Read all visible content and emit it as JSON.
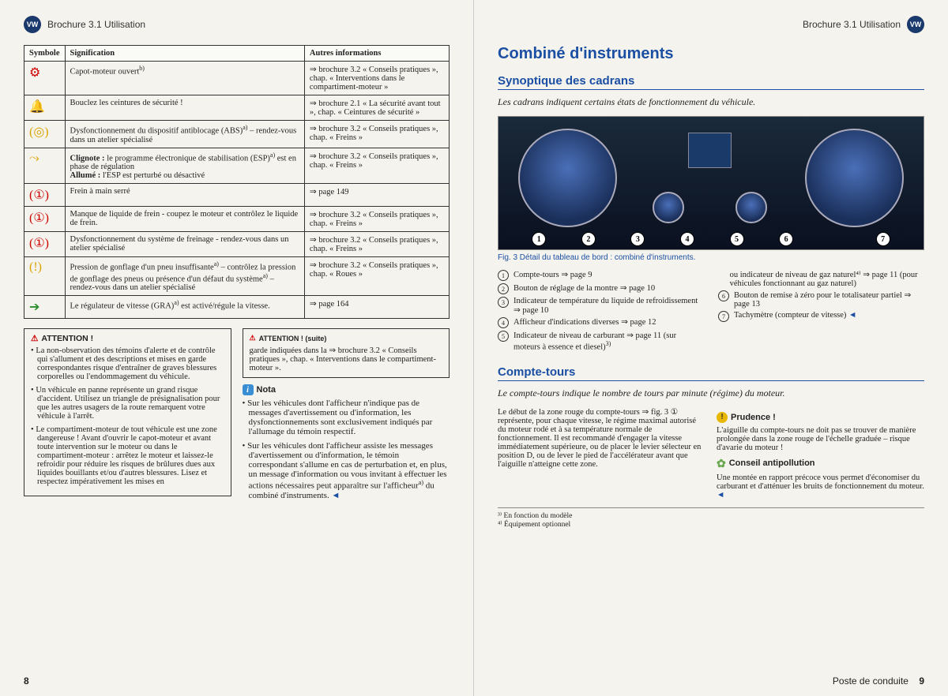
{
  "brochure_ref": "Brochure 3.1  Utilisation",
  "left_page_num": "8",
  "right_page_num": "9",
  "right_footer": "Poste de conduite",
  "table": {
    "headers": [
      "Symbole",
      "Signification",
      "Autres informations"
    ],
    "rows": [
      {
        "sym": "⚙",
        "cls": "sym-red",
        "sig": "Capot-moteur ouvert",
        "sigSup": "b)",
        "info": "⇒ brochure 3.2 « Conseils pratiques », chap. « Interventions dans le compartiment-moteur »"
      },
      {
        "sym": "🔔",
        "cls": "sym-red",
        "sig": "Bouclez les ceintures de sécurité !",
        "info": "⇒ brochure 2.1 « La sécurité avant tout », chap. « Ceintures de sécurité »"
      },
      {
        "sym": "(◎)",
        "cls": "sym-yellow",
        "sig": "Dysfonctionnement du dispositif antiblocage (ABS)",
        "sigSup": "a)",
        "sigTail": " – rendez-vous dans un atelier spécialisé",
        "info": "⇒ brochure 3.2 « Conseils pratiques », chap. « Freins »"
      },
      {
        "sym": "⤳",
        "cls": "sym-yellow",
        "sigHtml": "<b>Clignote :</b> le programme électronique de stabilisation (ESP)<sup>a)</sup> est en phase de régulation<br><b>Allumé :</b> l'ESP est perturbé ou désactivé",
        "info": "⇒ brochure 3.2 « Conseils pratiques », chap. « Freins »"
      },
      {
        "sym": "(①)",
        "cls": "sym-red",
        "sig": "Frein à main serré",
        "info": "⇒ page 149"
      },
      {
        "sym": "(①)",
        "cls": "sym-red",
        "sig": "Manque de liquide de frein - coupez le moteur et contrôlez le liquide de frein.",
        "info": "⇒ brochure 3.2 « Conseils pratiques », chap. « Freins »"
      },
      {
        "sym": "(①)",
        "cls": "sym-red",
        "sig": "Dysfonctionnement du système de freinage - rendez-vous dans un atelier spécialisé",
        "info": "⇒ brochure 3.2 « Conseils pratiques », chap. « Freins »"
      },
      {
        "sym": "(!)",
        "cls": "sym-yellow",
        "sigHtml": "Pression de gonflage d'un pneu insuffisante<sup>a)</sup> – contrôlez la pression de gonflage des pneus ou présence d'un défaut du système<sup>a)</sup> – rendez-vous dans un atelier spécialisé",
        "info": "⇒ brochure 3.2 « Conseils pratiques », chap. « Roues »"
      },
      {
        "sym": "➔",
        "cls": "sym-green",
        "sigHtml": "Le régulateur de vitesse (GRA)<sup>a)</sup> est activé/régule la vitesse.",
        "info": "⇒ page 164"
      }
    ]
  },
  "attention1": {
    "title": "ATTENTION !",
    "bullets": [
      "La non-observation des témoins d'alerte et de contrôle qui s'allument et des descriptions et mises en garde correspondantes risque d'entraîner de graves blessures corporelles ou l'endommagement du véhicule.",
      "Un véhicule en panne représente un grand risque d'accident. Utilisez un triangle de présignalisation pour que les autres usagers de la route remarquent votre véhicule à l'arrêt.",
      "Le compartiment-moteur de tout véhicule est une zone dangereuse ! Avant d'ouvrir le capot-moteur et avant toute intervention sur le moteur ou dans le compartiment-moteur : arrêtez le moteur et laissez-le refroidir pour réduire les risques de brûlures dues aux liquides bouillants et/ou d'autres blessures. Lisez et respectez impérativement les mises en"
    ]
  },
  "attention2": {
    "title": "ATTENTION ! (suite)",
    "text": "garde indiquées dans la ⇒ brochure 3.2 « Conseils pratiques », chap. « Interventions dans le compartiment-moteur »."
  },
  "nota": {
    "title": "Nota",
    "bullets": [
      "Sur les véhicules dont l'afficheur n'indique pas de messages d'avertissement ou d'information, les dysfonctionnements sont exclusivement indiqués par l'allumage du témoin respectif.",
      "Sur les véhicules dont l'afficheur assiste les messages d'avertissement ou d'information, le témoin correspondant s'allume en cas de perturbation et, en plus, un message d'information ou vous invitant à effectuer les actions nécessaires peut apparaître sur l'afficheur"
    ],
    "tail": " du combiné d'instruments.",
    "tailSup": "a)"
  },
  "right": {
    "h1": "Combiné d'instruments",
    "h2a": "Synoptique des cadrans",
    "lead_a": "Les cadrans indiquent certains états de fonctionnement du véhicule.",
    "fig_caption": "Fig. 3  Détail du tableau de bord : combiné d'instruments.",
    "callouts_left": [
      {
        "n": "1",
        "t": "Compte-tours ⇒ page 9"
      },
      {
        "n": "2",
        "t": "Bouton de réglage de la montre ⇒ page 10"
      },
      {
        "n": "3",
        "t": "Indicateur de température du liquide de refroidissement ⇒ page 10"
      },
      {
        "n": "4",
        "t": "Afficheur d'indications diverses ⇒ page 12"
      },
      {
        "n": "5",
        "t": "Indicateur de niveau de carburant ⇒ page 11 (sur moteurs à essence et diesel)"
      }
    ],
    "callouts_right": [
      {
        "n": "",
        "t": "ou indicateur de niveau de gaz naturel⁴⁾ ⇒ page 11 (pour véhicules fonctionnant au gaz naturel)"
      },
      {
        "n": "6",
        "t": "Bouton de remise à zéro pour le totalisateur partiel ⇒ page 13"
      },
      {
        "n": "7",
        "t": "Tachymètre (compteur de vitesse)"
      }
    ],
    "callout5_sup": "3)",
    "h2b": "Compte-tours",
    "lead_b": "Le compte-tours indique le nombre de tours par minute (régime) du moteur.",
    "body_left": "Le début de la zone rouge du compte-tours ⇒ fig. 3 ① représente, pour chaque vitesse, le régime maximal autorisé du moteur rodé et à sa température normale de fonctionnement. Il est recommandé d'engager la vitesse immédiatement supérieure, ou de placer le levier sélecteur en position D, ou de lever le pied de l'accélérateur avant que l'aiguille n'atteigne cette zone.",
    "prudence_title": "Prudence !",
    "prudence_text": "L'aiguille du compte-tours ne doit pas se trouver de manière prolongée dans la zone rouge de l'échelle graduée – risque d'avarie du moteur !",
    "conseil_title": "Conseil antipollution",
    "conseil_text": "Une montée en rapport précoce vous permet d'économiser du carburant et d'atténuer les bruits de fonctionnement du moteur.",
    "footnotes": [
      "³⁾  En fonction du modèle",
      "⁴⁾  Équipement optionnel"
    ]
  }
}
